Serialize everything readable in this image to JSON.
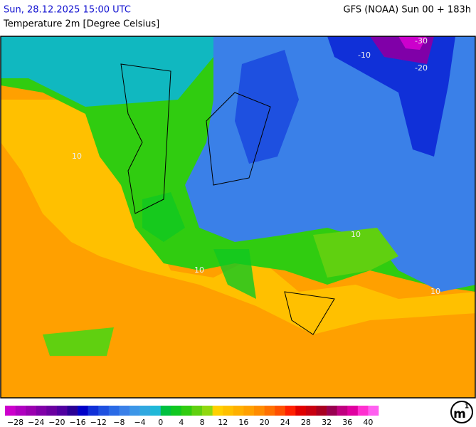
{
  "header": {
    "datetime": "Sun, 28.12.2025 15:00 UTC",
    "model": "GFS (NOAA) Sun 00 + 183h",
    "subtitle": "Temperature 2m [Degree Celsius]"
  },
  "map": {
    "contour_labels": [
      "-30",
      "-20",
      "-10",
      "10",
      "10",
      "10",
      "10"
    ]
  },
  "colorbar": {
    "colors": [
      "#cc00cc",
      "#b000c0",
      "#9a00b0",
      "#8000a8",
      "#6a00a0",
      "#5000a0",
      "#2a0096",
      "#0000c8",
      "#1030d8",
      "#1e50e0",
      "#2a6ae6",
      "#3a80e8",
      "#3c96e8",
      "#30a8e0",
      "#20b8d8",
      "#00c040",
      "#10c820",
      "#30cc10",
      "#60d010",
      "#90d810",
      "#ffd000",
      "#ffc000",
      "#ffb000",
      "#ffa000",
      "#ff8c00",
      "#ff7000",
      "#ff5000",
      "#ff2000",
      "#e00000",
      "#c80010",
      "#a80020",
      "#980050",
      "#c00080",
      "#e000a0",
      "#ff30d0",
      "#ff60f0"
    ],
    "labels": [
      "−28",
      "−24",
      "−20",
      "−16",
      "−12",
      "−8",
      "−4",
      "0",
      "4",
      "8",
      "12",
      "16",
      "20",
      "24",
      "28",
      "32",
      "36",
      "40"
    ]
  },
  "logo": {
    "text": "m",
    "superscript": "1"
  }
}
